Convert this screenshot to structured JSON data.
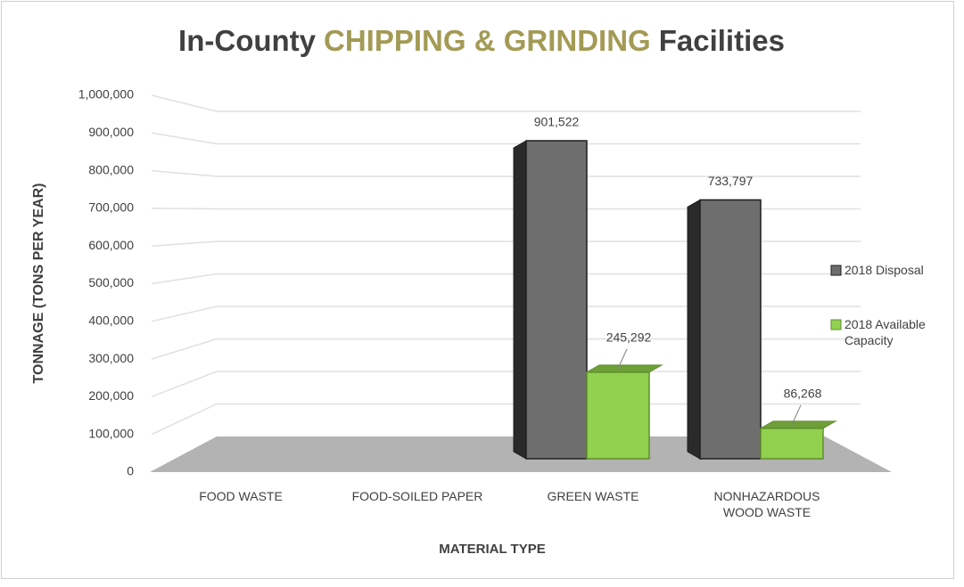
{
  "chart_data": {
    "type": "bar3d",
    "title_parts": [
      "In-County",
      "CHIPPING & GRINDING",
      "Facilities"
    ],
    "title_color": "#404040",
    "title_highlight_color": "#a39a55",
    "x_label": "MATERIAL TYPE",
    "y_label": "TONNAGE (TONS PER YEAR)",
    "categories": [
      "FOOD WASTE",
      "FOOD-SOILED PAPER",
      "GREEN WASTE",
      "NONHAZARDOUS WOOD WASTE"
    ],
    "series": [
      {
        "name": "2018 Disposal",
        "color": "#6e6e6e",
        "values": [
          null,
          null,
          901522,
          733797
        ],
        "value_labels": [
          null,
          null,
          "901,522",
          "733,797"
        ]
      },
      {
        "name": "2018 Available Capacity",
        "color": "#92d050",
        "values": [
          null,
          null,
          245292,
          86268
        ],
        "value_labels": [
          null,
          null,
          "245,292",
          "86,268"
        ]
      }
    ],
    "ylim": [
      0,
      1000000
    ],
    "yticks": [
      0,
      {
        "value": 100000,
        "label": "100,000"
      },
      {
        "value": 200000,
        "label": "200,000"
      },
      {
        "value": 300000,
        "label": "300,000"
      },
      {
        "value": 400000,
        "label": "400,000"
      },
      {
        "value": 500000,
        "label": "500,000"
      },
      {
        "value": 600000,
        "label": "600,000"
      },
      {
        "value": 700000,
        "label": "700,000"
      },
      {
        "value": 800000,
        "label": "800,000"
      },
      {
        "value": 900000,
        "label": "900,000"
      },
      {
        "value": 1000000,
        "label": "1,000,000"
      }
    ],
    "grid": true,
    "legend": "right"
  }
}
